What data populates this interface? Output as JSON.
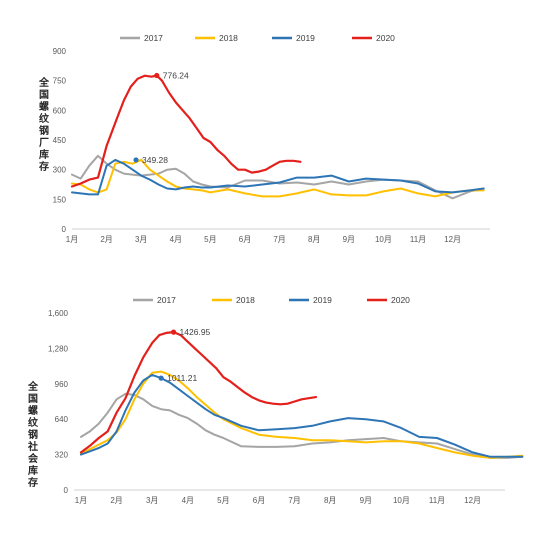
{
  "chart_data": [
    {
      "type": "line",
      "ylabel": "全国螺纹钢厂库存",
      "ylim": [
        0,
        900
      ],
      "yticks": [
        "0",
        "150",
        "300",
        "450",
        "600",
        "750",
        "900"
      ],
      "categories": [
        "1月",
        "2月",
        "3月",
        "4月",
        "5月",
        "6月",
        "7月",
        "8月",
        "9月",
        "10月",
        "11月",
        "12月"
      ],
      "legend_position": "top",
      "grid": false,
      "annotations": [
        {
          "label": "776.24",
          "series": "2020",
          "x": 2.45,
          "y": 776.24
        },
        {
          "label": "349.28",
          "series": "2019",
          "x": 1.85,
          "y": 349.28
        }
      ],
      "series": [
        {
          "name": "2017",
          "color": "#A5A5A5",
          "x": [
            0.0,
            0.25,
            0.5,
            0.75,
            1.0,
            1.25,
            1.5,
            1.75,
            2.0,
            2.25,
            2.5,
            2.75,
            3.0,
            3.25,
            3.5,
            3.75,
            4.0,
            4.5,
            5.0,
            5.5,
            6.0,
            6.5,
            7.0,
            7.5,
            8.0,
            8.5,
            9.0,
            9.5,
            10.0,
            10.5,
            11.0,
            11.5,
            11.9
          ],
          "y": [
            275,
            255,
            320,
            370,
            330,
            300,
            280,
            275,
            270,
            275,
            280,
            300,
            305,
            280,
            240,
            225,
            215,
            210,
            245,
            245,
            230,
            235,
            225,
            240,
            225,
            240,
            250,
            245,
            240,
            195,
            155,
            190,
            205
          ]
        },
        {
          "name": "2018",
          "color": "#FFC000",
          "x": [
            0.0,
            0.25,
            0.5,
            0.75,
            1.0,
            1.25,
            1.5,
            1.75,
            2.0,
            2.25,
            2.5,
            2.75,
            3.0,
            3.25,
            3.5,
            3.75,
            4.0,
            4.5,
            5.0,
            5.5,
            6.0,
            6.5,
            7.0,
            7.5,
            8.0,
            8.5,
            9.0,
            9.5,
            10.0,
            10.5,
            11.0,
            11.5,
            11.9
          ],
          "y": [
            230,
            225,
            200,
            185,
            200,
            330,
            340,
            330,
            350,
            300,
            270,
            240,
            215,
            205,
            200,
            195,
            185,
            200,
            180,
            165,
            165,
            180,
            200,
            175,
            170,
            170,
            190,
            205,
            180,
            165,
            185,
            195,
            195
          ]
        },
        {
          "name": "2019",
          "color": "#2E75B6",
          "x": [
            0.0,
            0.25,
            0.5,
            0.75,
            1.0,
            1.25,
            1.5,
            1.75,
            2.0,
            2.25,
            2.5,
            2.75,
            3.0,
            3.25,
            3.5,
            3.75,
            4.0,
            4.5,
            5.0,
            5.5,
            6.0,
            6.5,
            7.0,
            7.5,
            8.0,
            8.5,
            9.0,
            9.5,
            10.0,
            10.5,
            11.0,
            11.5,
            11.9
          ],
          "y": [
            185,
            180,
            175,
            175,
            320,
            349.28,
            330,
            300,
            270,
            250,
            225,
            205,
            200,
            210,
            215,
            210,
            210,
            220,
            215,
            225,
            235,
            260,
            260,
            270,
            240,
            255,
            250,
            245,
            230,
            190,
            185,
            195,
            205
          ]
        },
        {
          "name": "2020",
          "color": "#E3201B",
          "x": [
            0.0,
            0.25,
            0.5,
            0.75,
            1.0,
            1.15,
            1.3,
            1.5,
            1.7,
            1.9,
            2.1,
            2.3,
            2.45,
            2.6,
            2.8,
            3.0,
            3.2,
            3.4,
            3.6,
            3.8,
            4.0,
            4.2,
            4.4,
            4.6,
            4.8,
            5.0,
            5.2,
            5.4,
            5.6,
            5.8,
            6.0,
            6.2,
            6.4,
            6.6
          ],
          "y": [
            215,
            230,
            250,
            260,
            420,
            490,
            560,
            650,
            720,
            760,
            775,
            770,
            776.24,
            750,
            690,
            640,
            600,
            560,
            510,
            460,
            440,
            400,
            370,
            330,
            300,
            300,
            285,
            290,
            300,
            320,
            340,
            345,
            345,
            340
          ]
        }
      ]
    },
    {
      "type": "line",
      "ylabel": "全国螺纹钢社会库存",
      "ylim": [
        0,
        1600
      ],
      "yticks": [
        "0",
        "320",
        "640",
        "960",
        "1,280",
        "1,600"
      ],
      "categories": [
        "1月",
        "2月",
        "3月",
        "4月",
        "5月",
        "6月",
        "7月",
        "8月",
        "9月",
        "10月",
        "11月",
        "12月"
      ],
      "legend_position": "top",
      "grid": false,
      "annotations": [
        {
          "label": "1426.95",
          "series": "2020",
          "x": 2.6,
          "y": 1426.95
        },
        {
          "label": "1011.21",
          "series": "2019",
          "x": 2.25,
          "y": 1011.21
        }
      ],
      "series": [
        {
          "name": "2017",
          "color": "#A5A5A5",
          "x": [
            0.0,
            0.25,
            0.5,
            0.75,
            1.0,
            1.25,
            1.5,
            1.75,
            2.0,
            2.25,
            2.5,
            2.75,
            3.0,
            3.25,
            3.5,
            3.75,
            4.0,
            4.5,
            5.0,
            5.5,
            6.0,
            6.5,
            7.0,
            7.5,
            8.0,
            8.5,
            9.0,
            9.5,
            10.0,
            10.5,
            11.0,
            11.5,
            12.0,
            12.4
          ],
          "y": [
            480,
            530,
            600,
            700,
            820,
            870,
            860,
            820,
            760,
            730,
            720,
            680,
            650,
            600,
            540,
            500,
            470,
            395,
            390,
            390,
            395,
            420,
            430,
            450,
            460,
            470,
            440,
            430,
            420,
            370,
            320,
            290,
            290,
            300
          ]
        },
        {
          "name": "2018",
          "color": "#FFC000",
          "x": [
            0.0,
            0.25,
            0.5,
            0.75,
            1.0,
            1.25,
            1.5,
            1.75,
            2.0,
            2.25,
            2.5,
            2.75,
            3.0,
            3.25,
            3.5,
            3.75,
            4.0,
            4.5,
            5.0,
            5.5,
            6.0,
            6.5,
            7.0,
            7.5,
            8.0,
            8.5,
            9.0,
            9.5,
            10.0,
            10.5,
            11.0,
            11.5,
            12.0,
            12.4
          ],
          "y": [
            330,
            370,
            410,
            450,
            520,
            640,
            820,
            960,
            1060,
            1070,
            1040,
            990,
            920,
            840,
            770,
            700,
            640,
            560,
            500,
            480,
            470,
            450,
            450,
            440,
            430,
            440,
            440,
            420,
            380,
            340,
            310,
            290,
            300,
            310
          ]
        },
        {
          "name": "2019",
          "color": "#2E75B6",
          "x": [
            0.0,
            0.25,
            0.5,
            0.75,
            1.0,
            1.25,
            1.5,
            1.75,
            2.0,
            2.25,
            2.5,
            2.75,
            3.0,
            3.25,
            3.5,
            3.75,
            4.0,
            4.5,
            5.0,
            5.5,
            6.0,
            6.5,
            7.0,
            7.5,
            8.0,
            8.5,
            9.0,
            9.5,
            10.0,
            10.5,
            11.0,
            11.5,
            12.0,
            12.4
          ],
          "y": [
            320,
            350,
            380,
            420,
            530,
            720,
            880,
            990,
            1040,
            1011.21,
            970,
            910,
            850,
            790,
            730,
            680,
            650,
            580,
            540,
            550,
            560,
            580,
            620,
            650,
            640,
            620,
            560,
            480,
            470,
            410,
            340,
            300,
            300,
            300
          ]
        },
        {
          "name": "2020",
          "color": "#E3201B",
          "x": [
            0.0,
            0.25,
            0.5,
            0.75,
            1.0,
            1.25,
            1.5,
            1.75,
            2.0,
            2.2,
            2.4,
            2.6,
            2.8,
            3.0,
            3.2,
            3.4,
            3.6,
            3.8,
            4.0,
            4.2,
            4.4,
            4.6,
            4.8,
            5.0,
            5.2,
            5.4,
            5.6,
            5.8,
            6.0,
            6.2,
            6.4,
            6.6
          ],
          "y": [
            340,
            400,
            470,
            530,
            700,
            830,
            1030,
            1200,
            1330,
            1400,
            1420,
            1426.95,
            1400,
            1340,
            1280,
            1220,
            1160,
            1100,
            1020,
            980,
            930,
            880,
            840,
            810,
            790,
            780,
            775,
            780,
            800,
            820,
            830,
            840
          ]
        }
      ]
    }
  ]
}
